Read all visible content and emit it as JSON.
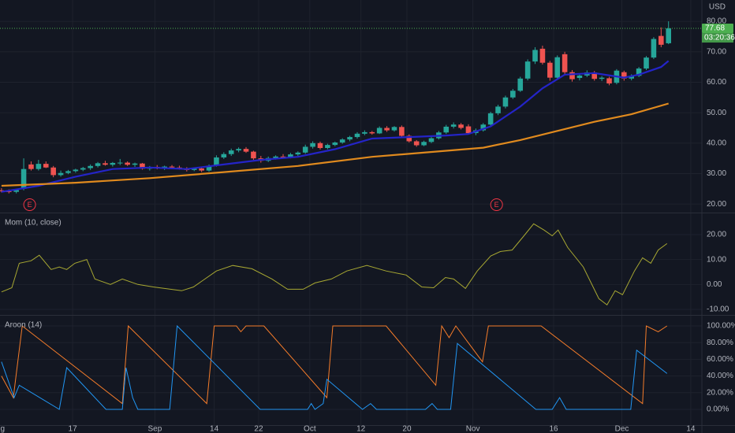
{
  "chart_data": [
    {
      "type": "candlestick",
      "currency": "USD",
      "up_color": "#26a69a",
      "down_color": "#ef5350",
      "ylim": [
        17.2,
        87
      ],
      "yticks": [
        {
          "value": 20,
          "label": "20.00"
        },
        {
          "value": 30,
          "label": "30.00"
        },
        {
          "value": 40,
          "label": "40.00"
        },
        {
          "value": 50,
          "label": "50.00"
        },
        {
          "value": 60,
          "label": "60.00"
        },
        {
          "value": 70,
          "label": "70.00"
        },
        {
          "value": 80,
          "label": "80.00"
        }
      ],
      "last_price": 77.68,
      "countdown": "03:20:36",
      "last_color": "#4caf50",
      "events": [
        {
          "x": 3.8,
          "label": "E"
        },
        {
          "x": 66.8,
          "label": "E"
        }
      ],
      "event_color": "#f23645",
      "ohlc": [
        [
          24.5,
          25.2,
          23.8,
          24.2
        ],
        [
          24.2,
          24.8,
          23.5,
          24.0
        ],
        [
          24.0,
          25.0,
          23.5,
          24.6
        ],
        [
          25,
          35,
          24.5,
          31.5
        ],
        [
          33,
          34,
          31,
          31.5
        ],
        [
          31.5,
          34.5,
          31,
          33.2
        ],
        [
          33.2,
          34,
          31.8,
          32
        ],
        [
          32,
          32.5,
          28.8,
          29.5
        ],
        [
          29.5,
          31,
          29,
          30.2
        ],
        [
          30.2,
          31.2,
          29.8,
          30.8
        ],
        [
          30.8,
          31.6,
          30.3,
          31.3
        ],
        [
          31.3,
          32.2,
          30.8,
          31.8
        ],
        [
          31.8,
          33,
          31.2,
          32.5
        ],
        [
          32.5,
          33.8,
          32,
          33.4
        ],
        [
          33.4,
          34.2,
          32.6,
          32.9
        ],
        [
          32.9,
          33.8,
          32.3,
          33.5
        ],
        [
          33.5,
          34.8,
          32.8,
          33.6
        ],
        [
          33.6,
          34,
          32.5,
          32.9
        ],
        [
          32.9,
          33.6,
          32.2,
          33.3
        ],
        [
          33.3,
          33.5,
          31.3,
          31.6
        ],
        [
          31.6,
          32.5,
          31,
          32.2
        ],
        [
          32.2,
          32.8,
          31.4,
          31.7
        ],
        [
          31.7,
          32.6,
          31.2,
          32.3
        ],
        [
          32.3,
          32.8,
          31.6,
          32.0
        ],
        [
          32,
          32.6,
          31.3,
          31.6
        ],
        [
          31.6,
          32.1,
          30.7,
          31.2
        ],
        [
          31.2,
          32,
          30.8,
          31.7
        ],
        [
          31.7,
          32.2,
          30.5,
          31.0
        ],
        [
          31,
          33,
          30.6,
          32.6
        ],
        [
          32.6,
          36,
          32.3,
          35.3
        ],
        [
          35.3,
          37,
          34.8,
          36.4
        ],
        [
          36.4,
          38.2,
          35.8,
          37.6
        ],
        [
          37.6,
          38.6,
          37,
          38.1
        ],
        [
          38.1,
          38.7,
          36.8,
          37.2
        ],
        [
          37.2,
          37.5,
          34.5,
          35
        ],
        [
          35,
          35.8,
          33.6,
          34.2
        ],
        [
          34.2,
          35.6,
          33.8,
          35.1
        ],
        [
          35.1,
          36,
          34.6,
          35.6
        ],
        [
          35.6,
          36.4,
          35,
          35.3
        ],
        [
          35.3,
          36.8,
          35,
          36.3
        ],
        [
          36.3,
          37.3,
          35.8,
          36.9
        ],
        [
          36.9,
          39.5,
          36.5,
          38.8
        ],
        [
          38.8,
          40.6,
          38.2,
          40
        ],
        [
          40,
          40.5,
          37.9,
          38.4
        ],
        [
          38.4,
          39.8,
          38,
          39.4
        ],
        [
          39.4,
          40.5,
          39,
          40.2
        ],
        [
          40.2,
          41.6,
          39.8,
          41.2
        ],
        [
          41.2,
          42.4,
          40.6,
          42
        ],
        [
          42,
          43.6,
          41.5,
          43.1
        ],
        [
          43.1,
          44.2,
          42.6,
          43.6
        ],
        [
          43.6,
          44,
          42.8,
          43.2
        ],
        [
          43.2,
          45.5,
          43,
          45
        ],
        [
          45,
          45.6,
          43.7,
          44.2
        ],
        [
          44.2,
          45.6,
          43.8,
          45.3
        ],
        [
          45.3,
          45.8,
          42,
          42.4
        ],
        [
          42.4,
          42.9,
          40.2,
          40.6
        ],
        [
          40.6,
          41,
          38.8,
          39.3
        ],
        [
          39.3,
          40.8,
          39,
          40.4
        ],
        [
          40.4,
          42,
          40,
          41.6
        ],
        [
          41.6,
          44,
          41.2,
          43.5
        ],
        [
          43.5,
          46,
          43,
          45.4
        ],
        [
          45.4,
          46.8,
          44.8,
          46.1
        ],
        [
          46.1,
          46.6,
          44.5,
          45
        ],
        [
          45.5,
          46.2,
          42.8,
          43.3
        ],
        [
          43.3,
          44.8,
          42.6,
          44.2
        ],
        [
          44.2,
          46.6,
          43.8,
          46.1
        ],
        [
          46.1,
          50.3,
          45.6,
          49.8
        ],
        [
          49.8,
          52.6,
          49.2,
          52
        ],
        [
          52,
          55.6,
          51.4,
          55
        ],
        [
          55,
          57.8,
          54.5,
          57.2
        ],
        [
          57.2,
          61.8,
          56.8,
          61.2
        ],
        [
          61.2,
          67.5,
          60.6,
          66.8
        ],
        [
          66.8,
          71.5,
          66,
          70.6
        ],
        [
          71,
          72,
          65.8,
          66.4
        ],
        [
          66.4,
          67,
          60.5,
          61.5
        ],
        [
          61.5,
          68.8,
          60.8,
          68.2
        ],
        [
          69.2,
          70,
          62.5,
          63.3
        ],
        [
          63.3,
          64,
          60.2,
          61
        ],
        [
          61.4,
          62.8,
          60.6,
          62.2
        ],
        [
          62.2,
          63.9,
          61.7,
          63.2
        ],
        [
          63.2,
          63.7,
          60.5,
          61.1
        ],
        [
          61.1,
          62,
          60.4,
          61.5
        ],
        [
          61.3,
          61.8,
          59,
          59.6
        ],
        [
          59.8,
          64.3,
          59.3,
          63.8
        ],
        [
          63.3,
          63.8,
          60.5,
          61.2
        ],
        [
          61.2,
          62.6,
          60.6,
          62.1
        ],
        [
          62.1,
          65,
          61.7,
          64.5
        ],
        [
          64.5,
          68.6,
          64,
          68.1
        ],
        [
          68.1,
          74.8,
          67.6,
          74.2
        ],
        [
          75.2,
          78,
          71.5,
          72.3
        ],
        [
          72.8,
          80,
          72.5,
          77.68
        ]
      ],
      "series": [
        {
          "color": "#2424c8",
          "x": [
            0,
            5,
            10,
            15,
            20,
            25,
            30,
            35,
            40,
            45,
            50,
            55,
            60,
            63,
            66,
            70,
            73,
            76,
            80,
            84,
            86,
            89,
            90
          ],
          "values": [
            24,
            26,
            29,
            31.5,
            32,
            31.5,
            33,
            34.5,
            35.5,
            38,
            41.5,
            42,
            42.5,
            43,
            45.5,
            52,
            58,
            62.5,
            63,
            61.5,
            62.5,
            65,
            67
          ]
        },
        {
          "color": "#e08a1e",
          "x": [
            0,
            10,
            20,
            30,
            40,
            50,
            60,
            65,
            70,
            75,
            80,
            85,
            90
          ],
          "values": [
            26,
            27,
            28.5,
            30.5,
            32.5,
            35.5,
            37.5,
            38.5,
            41,
            44,
            47,
            49.5,
            53
          ]
        }
      ]
    },
    {
      "type": "line",
      "title": "Mom (10, close)",
      "ylim": [
        -12.2,
        28.5
      ],
      "yticks": [
        {
          "value": -10,
          "label": "-10.00"
        },
        {
          "value": 0,
          "label": "0.00"
        },
        {
          "value": 10,
          "label": "10.00"
        },
        {
          "value": 20,
          "label": "20.00"
        }
      ],
      "series": [
        {
          "color": "#a8a832",
          "x": [
            0,
            1.4,
            2.4,
            4.0,
            5.1,
            6.7,
            7.8,
            8.8,
            9.9,
            11.5,
            12.6,
            14.7,
            16.3,
            18.4,
            20.5,
            24.3,
            25.9,
            29.0,
            31.2,
            33.8,
            36.5,
            38.6,
            40.7,
            42.3,
            44.5,
            46.6,
            49.3,
            51.9,
            54.6,
            56.7,
            58.3,
            59.9,
            61.0,
            62.6,
            64.2,
            66.0,
            67.3,
            68.9,
            70.5,
            71.8,
            73.2,
            74.3,
            75.1,
            76.4,
            78.5,
            80.6,
            81.7,
            82.8,
            83.8,
            85.4,
            86.5,
            87.6,
            88.6,
            89.8
          ],
          "values": [
            -3,
            -1.3,
            8.5,
            9.5,
            11.7,
            6,
            7,
            6,
            8.5,
            10,
            2.2,
            0,
            2.2,
            0,
            -1,
            -2.5,
            -1,
            5.4,
            7.6,
            6.3,
            2.2,
            -1.9,
            -1.9,
            0.6,
            2.2,
            5.4,
            7.6,
            5.4,
            3.8,
            -1,
            -1.3,
            2.8,
            2.2,
            -1.6,
            5.4,
            11.4,
            13.2,
            13.8,
            19.5,
            24.3,
            21.8,
            19.5,
            21.8,
            14.8,
            7,
            -5.7,
            -8.2,
            -2.5,
            -4.1,
            5.4,
            10.7,
            8.5,
            13.8,
            16.4
          ]
        }
      ]
    },
    {
      "type": "line",
      "title": "Aroon (14)",
      "ylim": [
        -18.9,
        112.3
      ],
      "yticks": [
        {
          "value": 0,
          "label": "0.00%"
        },
        {
          "value": 20,
          "label": "20.00%"
        },
        {
          "value": 40,
          "label": "40.00%"
        },
        {
          "value": 60,
          "label": "60.00%"
        },
        {
          "value": 80,
          "label": "80.00%"
        },
        {
          "value": 100,
          "label": "100.00%"
        }
      ],
      "xlim": [
        -0.2,
        94.5
      ],
      "xticks": [
        {
          "value": -0.5,
          "label": "Aug"
        },
        {
          "value": 9.6,
          "label": "17"
        },
        {
          "value": 20.7,
          "label": "Sep"
        },
        {
          "value": 28.7,
          "label": "14"
        },
        {
          "value": 34.7,
          "label": "22"
        },
        {
          "value": 41.6,
          "label": "Oct"
        },
        {
          "value": 48.5,
          "label": "12"
        },
        {
          "value": 54.7,
          "label": "20"
        },
        {
          "value": 63.6,
          "label": "Nov"
        },
        {
          "value": 74.5,
          "label": "16"
        },
        {
          "value": 83.7,
          "label": "Dec"
        },
        {
          "value": 93,
          "label": "14"
        }
      ],
      "series": [
        {
          "color": "#f57c2a",
          "x": [
            0,
            1.6,
            2.8,
            16.3,
            17.1,
            27.7,
            28.7,
            31.7,
            32.3,
            33.0,
            35.4,
            43.9,
            44.7,
            51.9,
            58.6,
            59.4,
            60.4,
            61.3,
            64.9,
            65.7,
            72.8,
            86.5,
            87.0,
            88.6,
            89.8
          ],
          "values": [
            40,
            14,
            100,
            7,
            100,
            7,
            100,
            100,
            93,
            100,
            100,
            14,
            100,
            100,
            29,
            100,
            86,
            100,
            57,
            100,
            100,
            7,
            100,
            93,
            100
          ]
        },
        {
          "color": "#2196f3",
          "x": [
            0,
            1.7,
            2.4,
            7.8,
            8.8,
            14.1,
            16.3,
            16.8,
            17.7,
            18.4,
            22.7,
            23.7,
            34.9,
            41.3,
            41.8,
            42.3,
            43.4,
            43.9,
            48.7,
            49.8,
            50.6,
            57.2,
            58.1,
            58.8,
            60.6,
            61.5,
            72.1,
            74.3,
            75.3,
            76.2,
            84.9,
            85.7,
            89.8
          ],
          "values": [
            57,
            14,
            29,
            0,
            50,
            0,
            0,
            50,
            14,
            0,
            0,
            100,
            0,
            0,
            7,
            0,
            7,
            36,
            0,
            7,
            0,
            0,
            7,
            0,
            0,
            79,
            0,
            0,
            14,
            0,
            0,
            71,
            43
          ]
        }
      ]
    }
  ]
}
